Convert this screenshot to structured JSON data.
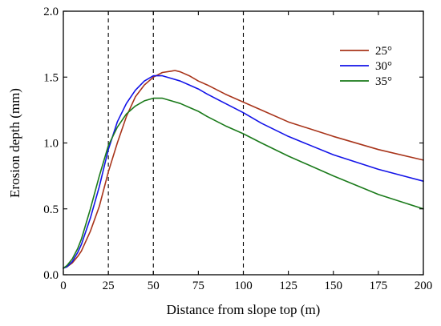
{
  "chart_data": {
    "type": "line",
    "title": "",
    "xlabel": "Distance from slope top (m)",
    "ylabel": "Erosion depth (mm)",
    "xlim": [
      0,
      200
    ],
    "ylim": [
      0.0,
      2.0
    ],
    "x_ticks": [
      0,
      25,
      50,
      75,
      100,
      125,
      150,
      175,
      200
    ],
    "x_tick_labels": [
      "0",
      "25",
      "50",
      "75",
      "100",
      "125",
      "150",
      "175",
      "200"
    ],
    "y_ticks": [
      0.0,
      0.5,
      1.0,
      1.5,
      2.0
    ],
    "y_tick_labels": [
      "0.0",
      "0.5",
      "1.0",
      "1.5",
      "2.0"
    ],
    "grid": false,
    "legend_position": "top-right",
    "reference_lines_x": [
      25,
      50,
      100
    ],
    "series": [
      {
        "name": "25°",
        "color": "#a8341a",
        "x": [
          0,
          2,
          5,
          8,
          10,
          15,
          20,
          25,
          30,
          35,
          40,
          45,
          50,
          55,
          60,
          62,
          65,
          70,
          75,
          80,
          90,
          100,
          110,
          125,
          150,
          175,
          200
        ],
        "y": [
          0.05,
          0.06,
          0.09,
          0.14,
          0.18,
          0.33,
          0.52,
          0.78,
          1.0,
          1.2,
          1.35,
          1.44,
          1.5,
          1.535,
          1.545,
          1.55,
          1.54,
          1.51,
          1.47,
          1.44,
          1.37,
          1.31,
          1.25,
          1.16,
          1.05,
          0.95,
          0.87
        ]
      },
      {
        "name": "30°",
        "color": "#1212e8",
        "x": [
          0,
          2,
          5,
          8,
          10,
          15,
          20,
          25,
          30,
          35,
          40,
          45,
          50,
          55,
          60,
          65,
          70,
          75,
          80,
          90,
          100,
          110,
          125,
          150,
          175,
          200
        ],
        "y": [
          0.05,
          0.06,
          0.1,
          0.17,
          0.23,
          0.43,
          0.67,
          0.95,
          1.16,
          1.3,
          1.4,
          1.47,
          1.51,
          1.51,
          1.49,
          1.47,
          1.44,
          1.41,
          1.37,
          1.3,
          1.23,
          1.15,
          1.05,
          0.91,
          0.8,
          0.71
        ]
      },
      {
        "name": "35°",
        "color": "#1a7a1a",
        "x": [
          0,
          2,
          5,
          8,
          10,
          15,
          20,
          25,
          30,
          35,
          40,
          45,
          50,
          55,
          60,
          65,
          70,
          75,
          80,
          90,
          100,
          110,
          125,
          150,
          175,
          200
        ],
        "y": [
          0.05,
          0.07,
          0.12,
          0.2,
          0.27,
          0.5,
          0.75,
          0.98,
          1.12,
          1.22,
          1.28,
          1.32,
          1.34,
          1.34,
          1.32,
          1.3,
          1.27,
          1.24,
          1.2,
          1.13,
          1.07,
          1.0,
          0.9,
          0.75,
          0.61,
          0.5
        ]
      }
    ]
  }
}
